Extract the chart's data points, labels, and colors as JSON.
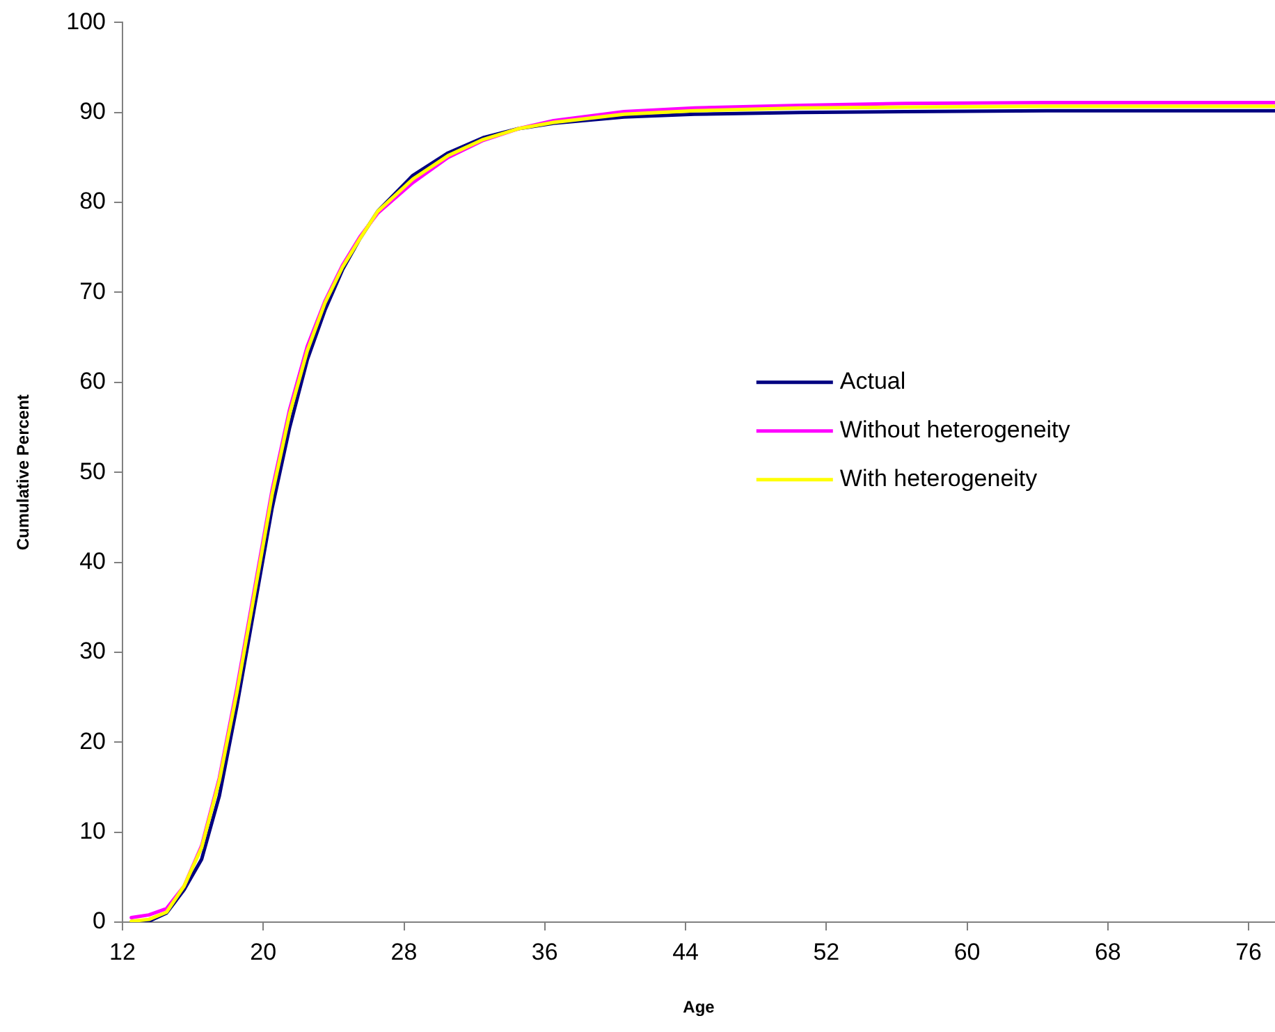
{
  "chart_data": {
    "type": "line",
    "xlabel": "Age",
    "ylabel": "Cumulative Percent",
    "xlim": [
      12,
      77.5
    ],
    "xticks": [
      12,
      20,
      28,
      36,
      44,
      52,
      60,
      68,
      76
    ],
    "ylim": [
      0,
      100
    ],
    "yticks": [
      0,
      10,
      20,
      30,
      40,
      50,
      60,
      70,
      80,
      90,
      100
    ],
    "grid": false,
    "legend": "right",
    "marker": "none",
    "line_style": "solid",
    "x": [
      12.5,
      13.5,
      14.5,
      15.5,
      16.5,
      17.5,
      18.5,
      19.5,
      20.5,
      21.5,
      22.5,
      23.5,
      24.5,
      25.5,
      26.5,
      28.5,
      30.5,
      32.5,
      34.5,
      36.5,
      40.5,
      44.5,
      50.5,
      56.5,
      64.5,
      77.5
    ],
    "series": [
      {
        "name": "Actual",
        "color": "#000080",
        "values": [
          0,
          0.1,
          1,
          3.6,
          7,
          14,
          24,
          35,
          46,
          55,
          62.5,
          68,
          72.5,
          76,
          79,
          83,
          85.5,
          87.2,
          88.2,
          88.8,
          89.5,
          89.8,
          90,
          90.1,
          90.2,
          90.2
        ]
      },
      {
        "name": "Without heterogeneity",
        "color": "#ff00ff",
        "values": [
          0.5,
          0.8,
          1.5,
          4,
          8.5,
          16,
          26,
          37,
          48,
          57,
          64,
          69,
          73,
          76.2,
          78.8,
          82.2,
          85,
          86.9,
          88.2,
          89.1,
          90.1,
          90.5,
          90.8,
          91,
          91.1,
          91.1
        ]
      },
      {
        "name": "With heterogeneity",
        "color": "#ffff00",
        "values": [
          0.1,
          0.3,
          1.1,
          4,
          8.3,
          15.7,
          25.5,
          36.5,
          47.5,
          56.5,
          63.5,
          68.8,
          72.8,
          76,
          79,
          82.6,
          85.2,
          87,
          88.2,
          88.9,
          89.8,
          90.2,
          90.5,
          90.6,
          90.7,
          90.7
        ]
      }
    ]
  }
}
